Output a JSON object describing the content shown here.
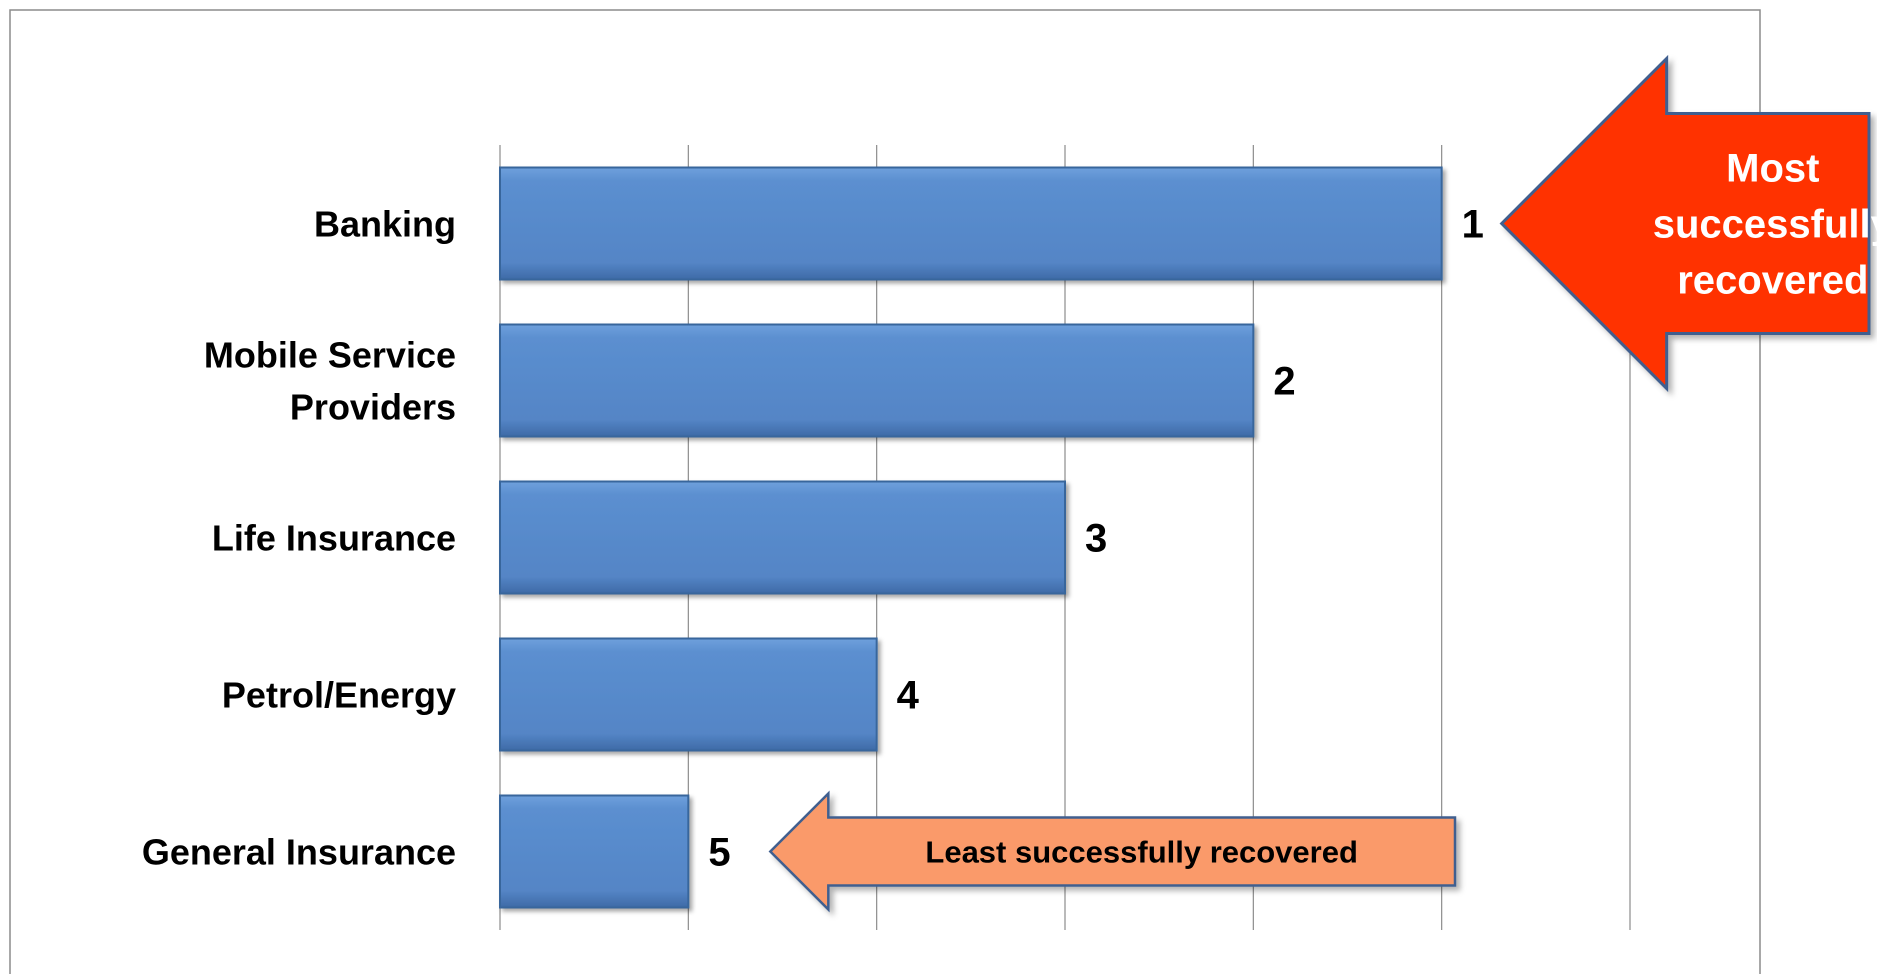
{
  "chart_data": {
    "type": "bar",
    "orientation": "horizontal",
    "categories": [
      [
        "Banking"
      ],
      [
        "Mobile Service",
        "Providers"
      ],
      [
        "Life Insurance"
      ],
      [
        "Petrol/Energy"
      ],
      [
        "General Insurance"
      ]
    ],
    "values": [
      5,
      4,
      3,
      2,
      1
    ],
    "data_labels": [
      "1",
      "2",
      "3",
      "4",
      "5"
    ],
    "xlim": [
      0,
      6
    ],
    "grid": true,
    "annotations": [
      {
        "name": "most-successfully-recovered",
        "lines": [
          "Most",
          "successfully",
          "recovered"
        ],
        "points_to_category": 0,
        "size": "large"
      },
      {
        "name": "least-successfully-recovered",
        "lines": [
          "Least successfully recovered"
        ],
        "points_to_category": 4,
        "size": "small"
      }
    ],
    "colors": {
      "bar_fill": "#5b8fd0",
      "bar_edge": "#37669c",
      "big_arrow_fill": "#ff3300",
      "big_arrow_edge": "#3f5f8f",
      "small_arrow_fill": "#fa9a6a",
      "small_arrow_edge": "#3f5f8f",
      "gridline": "#8c8c8c",
      "frame": "#8c8c8c"
    }
  }
}
